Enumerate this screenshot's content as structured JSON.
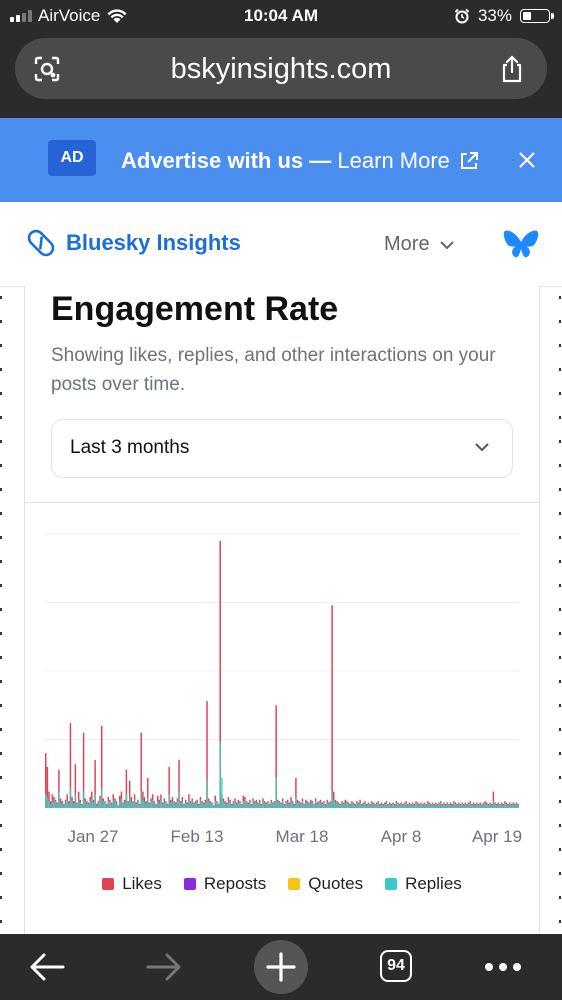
{
  "status_bar": {
    "carrier": "AirVoice",
    "time": "10:04 AM",
    "battery": "33%",
    "battery_level": 0.33
  },
  "browser": {
    "url": "bskyinsights.com",
    "tab_count": "94"
  },
  "ad_banner": {
    "badge": "AD",
    "lead": "Advertise with us —",
    "link": "Learn More"
  },
  "site_header": {
    "brand": "Bluesky Insights",
    "more_label": "More"
  },
  "card": {
    "title": "Engagement Rate",
    "subtitle": "Showing likes, replies, and other interactions on your posts over time.",
    "range_select": "Last 3 months"
  },
  "colors": {
    "likes": "#e04452",
    "reposts": "#8a2be2",
    "quotes": "#f5c518",
    "replies": "#3cc9c9",
    "accent": "#1d6fd6",
    "ad_bg": "#4a8ff0"
  },
  "chart_data": {
    "type": "bar",
    "x_ticks": [
      "Jan 27",
      "Feb 13",
      "Mar 18",
      "Apr 8",
      "Apr 19"
    ],
    "legend": [
      "Likes",
      "Reposts",
      "Quotes",
      "Replies"
    ],
    "y_max": 2.0,
    "grid": true,
    "legend_position": "bottom",
    "series": [
      {
        "name": "Likes",
        "values": [
          0.4,
          0.3,
          0.12,
          0.05,
          0.1,
          0.08,
          0.06,
          0.04,
          0.28,
          0.07,
          0.05,
          0.03,
          0.06,
          0.1,
          0.05,
          0.62,
          0.08,
          0.05,
          0.32,
          0.04,
          0.12,
          0.06,
          0.03,
          0.55,
          0.07,
          0.05,
          0.04,
          0.08,
          0.12,
          0.06,
          0.35,
          0.03,
          0.05,
          0.09,
          0.6,
          0.07,
          0.05,
          0.03,
          0.08,
          0.06,
          0.04,
          0.1,
          0.07,
          0.05,
          0.02,
          0.09,
          0.12,
          0.04,
          0.06,
          0.28,
          0.05,
          0.2,
          0.08,
          0.05,
          0.1,
          0.04,
          0.06,
          0.03,
          0.55,
          0.12,
          0.08,
          0.05,
          0.22,
          0.04,
          0.07,
          0.1,
          0.05,
          0.03,
          0.09,
          0.06,
          0.1,
          0.04,
          0.07,
          0.05,
          0.03,
          0.3,
          0.06,
          0.08,
          0.05,
          0.04,
          0.07,
          0.35,
          0.05,
          0.08,
          0.03,
          0.06,
          0.04,
          0.1,
          0.05,
          0.07,
          0.04,
          0.05,
          0.06,
          0.03,
          0.08,
          0.05,
          0.04,
          0.06,
          0.78,
          0.07,
          0.05,
          0.04,
          0.02,
          0.09,
          0.05,
          0.03,
          1.95,
          0.1,
          0.07,
          0.05,
          0.04,
          0.08,
          0.06,
          0.03,
          0.05,
          0.07,
          0.04,
          0.06,
          0.05,
          0.03,
          0.09,
          0.08,
          0.05,
          0.04,
          0.06,
          0.03,
          0.07,
          0.05,
          0.06,
          0.04,
          0.06,
          0.03,
          0.07,
          0.05,
          0.04,
          0.05,
          0.03,
          0.06,
          0.04,
          0.05,
          0.75,
          0.06,
          0.05,
          0.04,
          0.07,
          0.03,
          0.05,
          0.06,
          0.04,
          0.08,
          0.05,
          0.03,
          0.22,
          0.06,
          0.05,
          0.04,
          0.07,
          0.03,
          0.06,
          0.05,
          0.04,
          0.06,
          0.05,
          0.03,
          0.07,
          0.04,
          0.05,
          0.06,
          0.04,
          0.05,
          0.03,
          0.06,
          0.04,
          0.05,
          1.48,
          0.12,
          0.06,
          0.05,
          0.04,
          0.03,
          0.05,
          0.04,
          0.06,
          0.05,
          0.04,
          0.03,
          0.05,
          0.04,
          0.03,
          0.05,
          0.04,
          0.06,
          0.03,
          0.04,
          0.05,
          0.03,
          0.04,
          0.03,
          0.05,
          0.04,
          0.03,
          0.04,
          0.05,
          0.03,
          0.04,
          0.03,
          0.04,
          0.05,
          0.03,
          0.04,
          0.03,
          0.04,
          0.03,
          0.05,
          0.04,
          0.03,
          0.04,
          0.03,
          0.04,
          0.05,
          0.03,
          0.04,
          0.03,
          0.04,
          0.03,
          0.05,
          0.04,
          0.03,
          0.04,
          0.03,
          0.04,
          0.03,
          0.05,
          0.04,
          0.03,
          0.04,
          0.03,
          0.04,
          0.03,
          0.04,
          0.05,
          0.03,
          0.04,
          0.03,
          0.04,
          0.03,
          0.04,
          0.03,
          0.05,
          0.04,
          0.03,
          0.04,
          0.03,
          0.04,
          0.03,
          0.04,
          0.03,
          0.04,
          0.05,
          0.03,
          0.04,
          0.03,
          0.04,
          0.03,
          0.04,
          0.03,
          0.04,
          0.05,
          0.04,
          0.03,
          0.04,
          0.03,
          0.12,
          0.04,
          0.03,
          0.04,
          0.03,
          0.04,
          0.03,
          0.05,
          0.04,
          0.03,
          0.04,
          0.03,
          0.04,
          0.03,
          0.04,
          0.03
        ]
      },
      {
        "name": "Replies",
        "values": [
          0.1,
          0.08,
          0.05,
          0.03,
          0.06,
          0.04,
          0.05,
          0.03,
          0.12,
          0.04,
          0.03,
          0.02,
          0.05,
          0.06,
          0.03,
          0.15,
          0.05,
          0.03,
          0.1,
          0.03,
          0.06,
          0.04,
          0.02,
          0.12,
          0.05,
          0.03,
          0.03,
          0.05,
          0.06,
          0.04,
          0.1,
          0.02,
          0.04,
          0.05,
          0.14,
          0.05,
          0.04,
          0.02,
          0.05,
          0.04,
          0.03,
          0.06,
          0.05,
          0.03,
          0.02,
          0.05,
          0.07,
          0.03,
          0.04,
          0.1,
          0.04,
          0.08,
          0.05,
          0.04,
          0.06,
          0.03,
          0.04,
          0.02,
          0.12,
          0.06,
          0.05,
          0.03,
          0.08,
          0.03,
          0.05,
          0.06,
          0.04,
          0.02,
          0.05,
          0.04,
          0.06,
          0.03,
          0.05,
          0.04,
          0.02,
          0.1,
          0.04,
          0.05,
          0.04,
          0.03,
          0.05,
          0.12,
          0.04,
          0.05,
          0.02,
          0.04,
          0.03,
          0.06,
          0.04,
          0.05,
          0.03,
          0.04,
          0.04,
          0.02,
          0.05,
          0.04,
          0.03,
          0.04,
          0.2,
          0.05,
          0.04,
          0.03,
          0.02,
          0.05,
          0.04,
          0.02,
          0.48,
          0.22,
          0.05,
          0.04,
          0.03,
          0.05,
          0.04,
          0.02,
          0.04,
          0.05,
          0.03,
          0.04,
          0.04,
          0.02,
          0.05,
          0.05,
          0.04,
          0.03,
          0.04,
          0.02,
          0.05,
          0.04,
          0.04,
          0.03,
          0.04,
          0.02,
          0.05,
          0.04,
          0.03,
          0.04,
          0.02,
          0.04,
          0.03,
          0.04,
          0.22,
          0.05,
          0.04,
          0.03,
          0.05,
          0.02,
          0.04,
          0.04,
          0.03,
          0.05,
          0.04,
          0.02,
          0.08,
          0.04,
          0.04,
          0.03,
          0.05,
          0.02,
          0.04,
          0.04,
          0.03,
          0.04,
          0.04,
          0.02,
          0.05,
          0.03,
          0.04,
          0.04,
          0.03,
          0.04,
          0.02,
          0.04,
          0.03,
          0.04,
          0.12,
          0.06,
          0.04,
          0.04,
          0.03,
          0.02,
          0.04,
          0.03,
          0.04,
          0.04,
          0.03,
          0.02,
          0.04,
          0.03,
          0.02,
          0.04,
          0.03,
          0.04,
          0.02,
          0.03,
          0.04,
          0.02,
          0.03,
          0.02,
          0.04,
          0.03,
          0.02,
          0.03,
          0.04,
          0.02,
          0.03,
          0.02,
          0.03,
          0.04,
          0.02,
          0.03,
          0.02,
          0.03,
          0.02,
          0.04,
          0.03,
          0.02,
          0.03,
          0.02,
          0.03,
          0.04,
          0.02,
          0.03,
          0.02,
          0.03,
          0.02,
          0.04,
          0.03,
          0.02,
          0.03,
          0.02,
          0.03,
          0.02,
          0.04,
          0.03,
          0.02,
          0.03,
          0.02,
          0.03,
          0.02,
          0.03,
          0.04,
          0.02,
          0.03,
          0.02,
          0.03,
          0.02,
          0.03,
          0.02,
          0.04,
          0.03,
          0.02,
          0.03,
          0.02,
          0.03,
          0.02,
          0.03,
          0.02,
          0.03,
          0.04,
          0.02,
          0.03,
          0.02,
          0.03,
          0.02,
          0.03,
          0.02,
          0.03,
          0.04,
          0.03,
          0.02,
          0.03,
          0.02,
          0.05,
          0.03,
          0.02,
          0.03,
          0.02,
          0.03,
          0.02,
          0.04,
          0.03,
          0.02,
          0.03,
          0.02,
          0.03,
          0.02,
          0.03,
          0.02
        ]
      }
    ]
  }
}
